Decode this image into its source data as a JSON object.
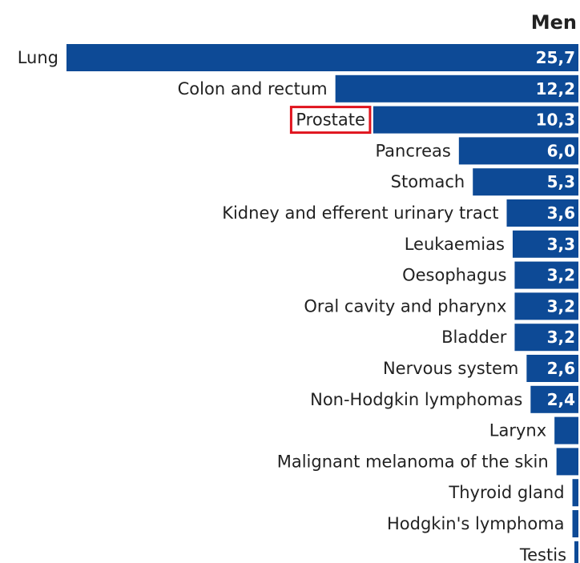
{
  "chart_data": {
    "type": "barh",
    "title": "Men",
    "categories": [
      "Lung",
      "Colon and rectum",
      "Prostate",
      "Pancreas",
      "Stomach",
      "Kidney and efferent urinary tract",
      "Leukaemias",
      "Oesophagus",
      "Oral cavity and pharynx",
      "Bladder",
      "Nervous system",
      "Non-Hodgkin lymphomas",
      "Larynx",
      "Malignant melanoma of the skin",
      "Thyroid gland",
      "Hodgkin's lymphoma",
      "Testis"
    ],
    "values": [
      25.7,
      12.2,
      10.3,
      6.0,
      5.3,
      3.6,
      3.3,
      3.2,
      3.2,
      3.2,
      2.6,
      2.4,
      1.2,
      1.1,
      0.3,
      0.3,
      0.2
    ],
    "value_labels": [
      "25,7",
      "12,2",
      "10,3",
      "6,0",
      "5,3",
      "3,6",
      "3,3",
      "3,2",
      "3,2",
      "3,2",
      "2,6",
      "2,4",
      null,
      null,
      null,
      null,
      null
    ],
    "color": "#0d4a96",
    "xlim": [
      0,
      25.7
    ],
    "highlight": 2,
    "highlight_color": "#e0141e"
  }
}
